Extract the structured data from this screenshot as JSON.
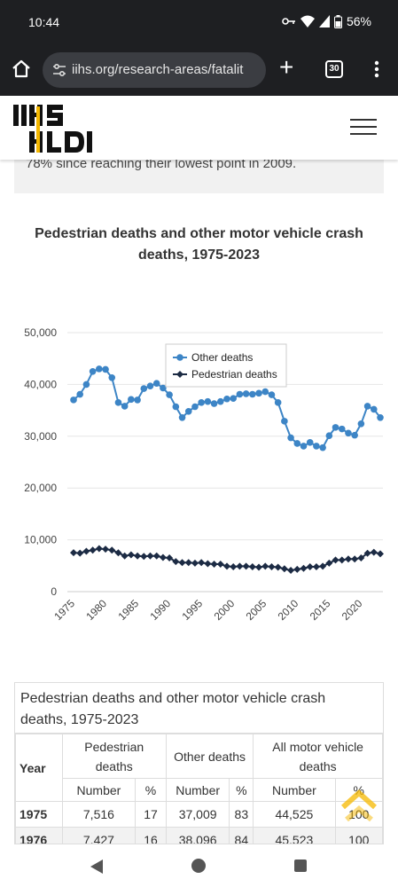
{
  "status_bar": {
    "time": "10:44",
    "battery": "56%"
  },
  "browser": {
    "url": "iihs.org/research-areas/fatalit",
    "tab_count": "30"
  },
  "intro": {
    "text": "78% since reaching their lowest point in 2009."
  },
  "chart_title_line1": "Pedestrian deaths and other motor vehicle crash",
  "chart_title_line2": "deaths, 1975-2023",
  "chart_data": {
    "type": "line",
    "x": [
      1975,
      1976,
      1977,
      1978,
      1979,
      1980,
      1981,
      1982,
      1983,
      1984,
      1985,
      1986,
      1987,
      1988,
      1989,
      1990,
      1991,
      1992,
      1993,
      1994,
      1995,
      1996,
      1997,
      1998,
      1999,
      2000,
      2001,
      2002,
      2003,
      2004,
      2005,
      2006,
      2007,
      2008,
      2009,
      2010,
      2011,
      2012,
      2013,
      2014,
      2015,
      2016,
      2017,
      2018,
      2019,
      2020,
      2021,
      2022,
      2023
    ],
    "series": [
      {
        "name": "Other deaths",
        "color": "#3d85c6",
        "marker": "circle",
        "values": [
          37009,
          38096,
          40000,
          42500,
          43000,
          42900,
          41300,
          36500,
          35800,
          37100,
          37000,
          39200,
          39700,
          40200,
          39300,
          38000,
          35700,
          33600,
          34800,
          35700,
          36500,
          36700,
          36300,
          36700,
          37200,
          37300,
          38100,
          38200,
          38100,
          38300,
          38600,
          38000,
          36500,
          32900,
          29700,
          28600,
          28100,
          28800,
          28100,
          27800,
          30100,
          31700,
          31400,
          30600,
          30200,
          32400,
          35800,
          35200,
          33600
        ]
      },
      {
        "name": "Pedestrian deaths",
        "color": "#1c2b44",
        "marker": "diamond",
        "values": [
          7516,
          7427,
          7800,
          8000,
          8300,
          8200,
          8000,
          7500,
          6900,
          7100,
          6900,
          6800,
          6900,
          6900,
          6600,
          6500,
          5800,
          5600,
          5600,
          5500,
          5600,
          5400,
          5300,
          5300,
          4900,
          4800,
          4900,
          4900,
          4800,
          4700,
          4900,
          4800,
          4700,
          4400,
          4100,
          4300,
          4500,
          4800,
          4800,
          4900,
          5500,
          6100,
          6100,
          6300,
          6300,
          6500,
          7400,
          7600,
          7300
        ]
      }
    ],
    "y_ticks": [
      "0",
      "10,000",
      "20,000",
      "30,000",
      "40,000",
      "50,000"
    ],
    "x_ticks": [
      "1975",
      "1980",
      "1985",
      "1990",
      "1995",
      "2000",
      "2005",
      "2010",
      "2015",
      "2020"
    ],
    "ylim": [
      0,
      50000
    ],
    "legend_position": "top-center",
    "grid": true
  },
  "table": {
    "caption_line1": "Pedestrian deaths and other motor vehicle crash",
    "caption_line2": "deaths, 1975-2023",
    "headers": {
      "year": "Year",
      "ped_line1": "Pedestrian",
      "ped_line2": "deaths",
      "other": "Other deaths",
      "all_line1": "All motor vehicle",
      "all_line2": "deaths",
      "number": "Number",
      "percent": "%"
    },
    "rows": [
      {
        "year": "1975",
        "ped_num": "7,516",
        "ped_pct": "17",
        "other_num": "37,009",
        "other_pct": "83",
        "all_num": "44,525",
        "all_pct": "100"
      },
      {
        "year": "1976",
        "ped_num": "7,427",
        "ped_pct": "16",
        "other_num": "38,096",
        "other_pct": "84",
        "all_num": "45,523",
        "all_pct": "100"
      }
    ]
  },
  "colors": {
    "accent_yellow": "#f5b800",
    "other_series": "#3d85c6",
    "ped_series": "#1c2b44"
  }
}
